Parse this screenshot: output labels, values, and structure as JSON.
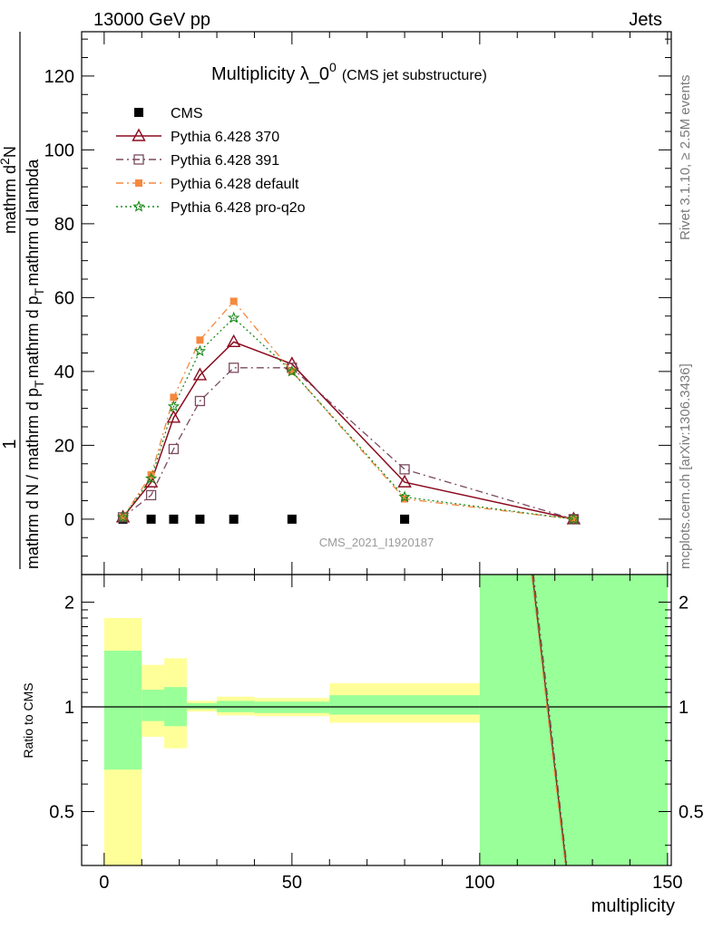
{
  "header": {
    "left": "13000 GeV pp",
    "right": "Jets"
  },
  "side_labels": {
    "top": "Rivet 3.1.10, ≥ 2.5M events",
    "bottom": "mcplots.cern.ch [arXiv:1306.3436]"
  },
  "watermark": "CMS_2021_I1920187",
  "chart_data": {
    "type": "line",
    "title": "Multiplicity λ_0",
    "title_superscript": "0",
    "title_suffix": "(CMS jet substructure)",
    "xlabel": "multiplicity",
    "ylabel": {
      "numerator": "1",
      "denominator": "mathrm d N / mathrm d p",
      "denominator_sub": "T",
      "denominator_rest": "mathrm d p",
      "denominator_sub2": "T",
      "denominator_rest2": "mathrm d lambda",
      "top": "mathrm d",
      "top_sup": "2",
      "top_rest": "N"
    },
    "xlim": [
      -6,
      151
    ],
    "main_panel": {
      "ylim": [
        -15,
        132
      ],
      "yticks": [
        0,
        20,
        40,
        60,
        80,
        100,
        120
      ],
      "xticks": [
        0,
        50,
        100,
        150
      ],
      "legend_position": "top-left",
      "series": [
        {
          "name": "CMS",
          "style": "data",
          "color": "#000000",
          "x": [
            5,
            12.5,
            18.5,
            25.5,
            34.5,
            50,
            80,
            125
          ],
          "y": [
            0,
            0,
            0,
            0,
            0,
            0,
            0,
            0
          ]
        },
        {
          "name": "Pythia 6.428 370",
          "style": "solid",
          "marker": "triangle",
          "color": "#8b0a1e",
          "x": [
            5,
            12.5,
            18.5,
            25.5,
            34.5,
            50,
            80,
            125
          ],
          "y": [
            0.5,
            10,
            27.5,
            39,
            48,
            42,
            10,
            0
          ]
        },
        {
          "name": "Pythia 6.428 391",
          "style": "dashdot",
          "marker": "square-open",
          "color": "#7a4a5e",
          "x": [
            5,
            12.5,
            18.5,
            25.5,
            34.5,
            50,
            80,
            125
          ],
          "y": [
            0.5,
            6.5,
            19,
            32,
            41,
            41,
            13.5,
            0
          ]
        },
        {
          "name": "Pythia 6.428 default",
          "style": "dashdot",
          "marker": "square-filled",
          "color": "#f6883e",
          "x": [
            5,
            12.5,
            18.5,
            25.5,
            34.5,
            50,
            80,
            125
          ],
          "y": [
            0.5,
            12,
            33,
            48.5,
            59,
            40,
            5.5,
            0
          ]
        },
        {
          "name": "Pythia 6.428 pro-q2o",
          "style": "dotted",
          "marker": "star",
          "color": "#1a8a1a",
          "x": [
            5,
            12.5,
            18.5,
            25.5,
            34.5,
            50,
            80,
            125
          ],
          "y": [
            0.5,
            11,
            30.5,
            45.5,
            54.5,
            40,
            6,
            0
          ]
        }
      ]
    },
    "ratio_panel": {
      "ylabel": "Ratio to CMS",
      "ylim": [
        0.35,
        2.4
      ],
      "scale": "log",
      "yticks": [
        0.5,
        1,
        2
      ],
      "ytick_labels": [
        "0.5",
        "1",
        "2"
      ],
      "bands": [
        {
          "x": [
            0,
            10
          ],
          "outer": [
            0.35,
            1.8
          ],
          "inner": [
            0.66,
            1.45
          ]
        },
        {
          "x": [
            10,
            16
          ],
          "outer": [
            0.82,
            1.32
          ],
          "inner": [
            0.91,
            1.12
          ]
        },
        {
          "x": [
            16,
            22
          ],
          "outer": [
            0.76,
            1.38
          ],
          "inner": [
            0.88,
            1.14
          ]
        },
        {
          "x": [
            22,
            30
          ],
          "outer": [
            0.97,
            1.04
          ],
          "inner": [
            0.985,
            1.025
          ]
        },
        {
          "x": [
            30,
            40
          ],
          "outer": [
            0.945,
            1.07
          ],
          "inner": [
            0.965,
            1.04
          ]
        },
        {
          "x": [
            40,
            60
          ],
          "outer": [
            0.94,
            1.06
          ],
          "inner": [
            0.96,
            1.035
          ]
        },
        {
          "x": [
            60,
            100
          ],
          "outer": [
            0.9,
            1.17
          ],
          "inner": [
            0.95,
            1.08
          ]
        },
        {
          "x": [
            100,
            150
          ],
          "outer": [
            0.35,
            2.4
          ],
          "inner": [
            0.35,
            2.4
          ]
        }
      ],
      "ratio_lines": [
        {
          "series": "Pythia 6.428 370",
          "x": [
            114,
            123
          ],
          "y": [
            2.4,
            0.35
          ]
        },
        {
          "series": "Pythia 6.428 391",
          "x": [
            114.3,
            123.2
          ],
          "y": [
            2.4,
            0.35
          ]
        },
        {
          "series": "Pythia 6.428 default",
          "x": [
            113.8,
            122.8
          ],
          "y": [
            2.4,
            0.35
          ]
        },
        {
          "series": "Pythia 6.428 pro-q2o",
          "x": [
            114.1,
            123.1
          ],
          "y": [
            2.4,
            0.35
          ]
        }
      ],
      "band_colors": {
        "outer": "#ffff99",
        "inner": "#99ff99"
      }
    }
  }
}
